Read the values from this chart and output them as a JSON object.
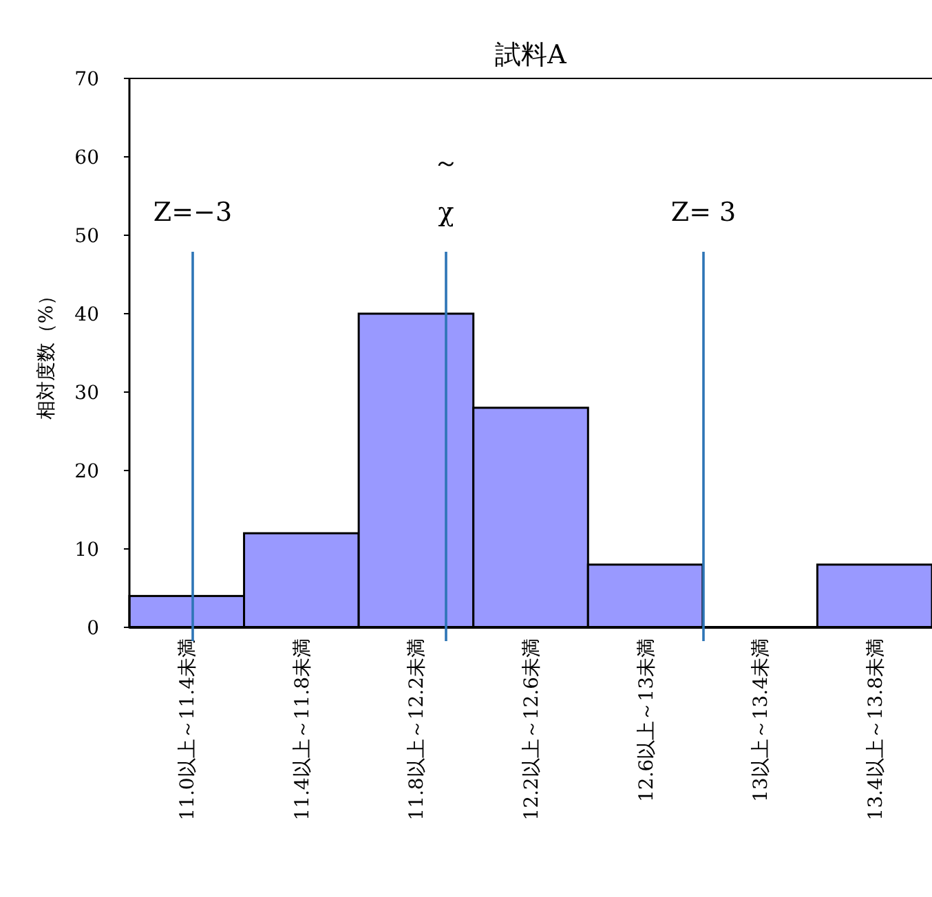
{
  "chart_data": {
    "type": "bar",
    "title": "試料A",
    "ylabel": "相対度数（%）",
    "categories": [
      "11.0以上～11.4未満",
      "11.4以上～11.8未満",
      "11.8以上～12.2未満",
      "12.2以上～12.6未満",
      "12.6以上～13未満",
      "13以上～13.4未満",
      "13.4以上～13.8未満"
    ],
    "values": [
      4,
      12,
      40,
      28,
      8,
      0,
      8
    ],
    "color": "#9999ff",
    "ylim": [
      0,
      70
    ],
    "yticks": [
      0,
      10,
      20,
      30,
      40,
      50,
      60,
      70
    ],
    "annotations": [
      "Z=−3",
      "～\nχ",
      "Z= 3"
    ]
  }
}
